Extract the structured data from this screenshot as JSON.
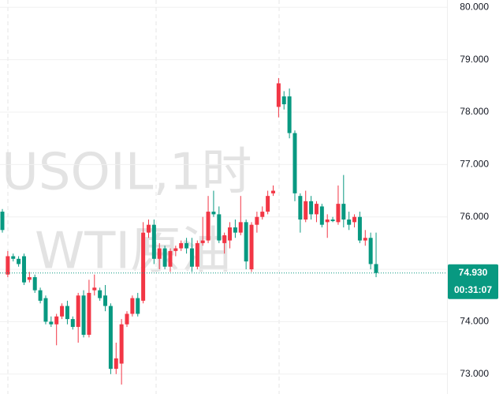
{
  "chart_data": {
    "type": "candlestick",
    "watermark": [
      "USOIL,1时",
      "WTI原油"
    ],
    "open": [
      76.1,
      74.9,
      75.25,
      75.2,
      75.25,
      74.8,
      74.85,
      74.6,
      74.45,
      74.0,
      73.95,
      74.1,
      74.3,
      74.05,
      73.9,
      74.5,
      73.75,
      74.6,
      74.6,
      74.5,
      74.3,
      73.1,
      73.2,
      73.95,
      74.15,
      74.45,
      74.4,
      75.7,
      75.85,
      75.2,
      75.4,
      75.05,
      75.35,
      75.4,
      75.5,
      75.4,
      75.05,
      75.5,
      75.55,
      76.1,
      76.05,
      75.5,
      75.55,
      75.8,
      75.7,
      75.9,
      75.0,
      75.85,
      76.0,
      76.1,
      76.45,
      78.1,
      78.3,
      78.3,
      77.6,
      76.4,
      75.95,
      76.3,
      76.05,
      76.2,
      75.9,
      75.95,
      75.9,
      76.25,
      75.95,
      75.9,
      76.0,
      75.55,
      75.6,
      75.1
    ],
    "high": [
      76.15,
      75.35,
      75.3,
      75.25,
      75.3,
      74.95,
      74.9,
      74.65,
      74.5,
      74.1,
      74.15,
      74.35,
      74.4,
      74.1,
      74.55,
      74.6,
      74.8,
      74.9,
      74.65,
      74.7,
      74.35,
      73.6,
      74.05,
      74.2,
      74.5,
      74.55,
      75.9,
      75.95,
      75.95,
      75.5,
      75.45,
      75.4,
      75.45,
      75.55,
      75.6,
      75.6,
      75.55,
      76.0,
      76.4,
      76.5,
      76.2,
      75.7,
      75.9,
      75.95,
      76.4,
      75.95,
      75.9,
      76.1,
      76.2,
      76.5,
      76.6,
      78.65,
      78.4,
      78.45,
      77.65,
      76.45,
      76.5,
      76.4,
      76.3,
      76.25,
      76.05,
      76.0,
      76.6,
      76.8,
      76.1,
      76.05,
      76.1,
      75.75,
      75.7,
      75.7
    ],
    "low": [
      75.7,
      74.85,
      75.15,
      75.05,
      74.7,
      74.75,
      74.55,
      74.35,
      73.95,
      73.9,
      73.55,
      74.05,
      73.95,
      73.85,
      73.6,
      73.7,
      73.7,
      74.5,
      74.4,
      74.2,
      73.0,
      73.0,
      72.8,
      73.9,
      74.1,
      74.1,
      74.35,
      75.6,
      75.1,
      75.0,
      75.0,
      74.95,
      75.25,
      75.35,
      75.3,
      74.95,
      75.0,
      75.45,
      75.5,
      76.0,
      75.5,
      75.3,
      75.4,
      75.6,
      75.65,
      75.0,
      74.95,
      75.7,
      75.95,
      76.05,
      76.4,
      77.9,
      78.05,
      77.5,
      76.3,
      75.7,
      75.9,
      75.95,
      75.9,
      75.8,
      75.6,
      75.9,
      75.85,
      75.8,
      75.75,
      75.8,
      75.5,
      75.45,
      75.0,
      74.85
    ],
    "close": [
      75.75,
      75.25,
      75.2,
      75.1,
      74.75,
      74.85,
      74.6,
      74.4,
      74.0,
      73.95,
      74.1,
      74.3,
      74.05,
      73.9,
      74.5,
      73.75,
      74.55,
      74.65,
      74.45,
      74.3,
      73.1,
      73.3,
      73.95,
      74.15,
      74.45,
      74.15,
      75.7,
      75.85,
      75.2,
      75.4,
      75.05,
      75.35,
      75.4,
      75.5,
      75.4,
      75.05,
      75.5,
      75.55,
      76.1,
      76.05,
      75.55,
      75.65,
      75.8,
      75.7,
      75.9,
      75.15,
      75.85,
      76.0,
      76.1,
      76.4,
      76.5,
      78.55,
      78.15,
      77.6,
      76.45,
      75.95,
      76.3,
      76.05,
      76.25,
      75.85,
      75.95,
      75.92,
      76.25,
      75.95,
      75.85,
      76.0,
      75.55,
      75.6,
      75.1,
      74.93
    ],
    "up_color": "#f23645",
    "down_color": "#089981",
    "ylim": [
      72.62,
      80.14
    ],
    "yticks": [
      {
        "value": 73,
        "label": "73.000"
      },
      {
        "value": 74,
        "label": "74.000"
      },
      {
        "value": 75,
        "label": "75.000"
      },
      {
        "value": 76,
        "label": "76.000"
      },
      {
        "value": 77,
        "label": "77.000"
      },
      {
        "value": 78,
        "label": "78.000"
      },
      {
        "value": 79,
        "label": "79.000"
      },
      {
        "value": 80,
        "label": "80.000"
      }
    ],
    "grid": true,
    "last_price": {
      "value": 74.93,
      "label": "74.930"
    },
    "countdown": "00:31:07"
  }
}
